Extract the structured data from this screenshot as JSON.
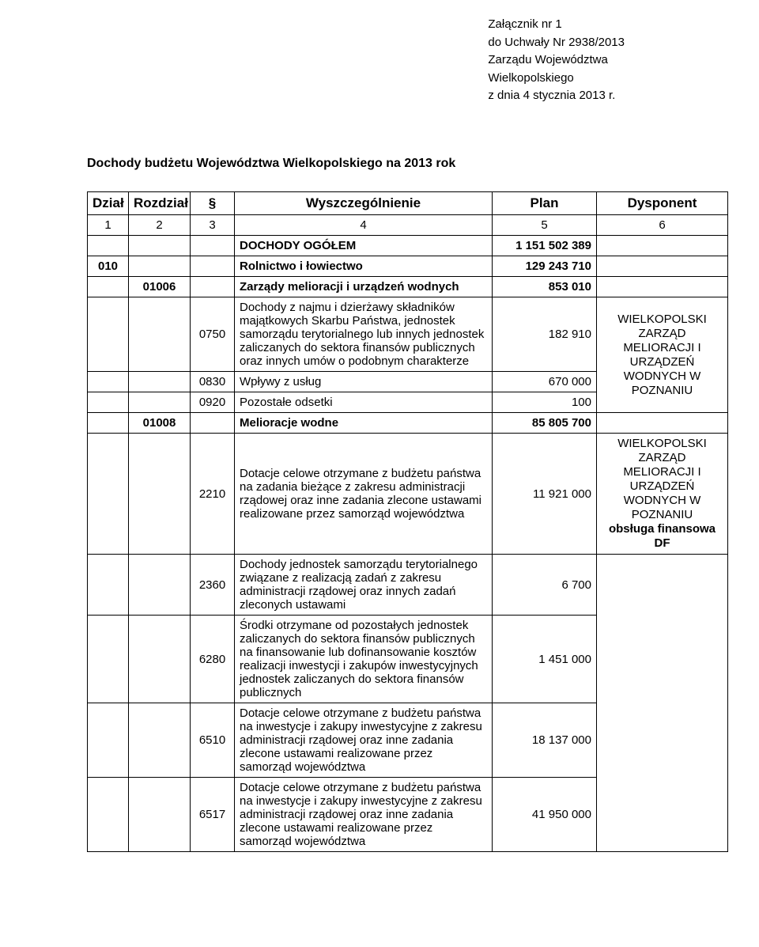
{
  "attachment": {
    "line1": "Załącznik nr 1",
    "line2": "do Uchwały Nr 2938/2013",
    "line3": "Zarządu Województwa",
    "line4": "Wielkopolskiego",
    "line5": "z dnia 4 stycznia 2013 r."
  },
  "title": "Dochody budżetu Województwa Wielkopolskiego na 2013 rok",
  "headers": {
    "dzial": "Dział",
    "rozdzial": "Rozdział",
    "paragraf": "§",
    "wyszcz": "Wyszczególnienie",
    "plan": "Plan",
    "dysponent": "Dysponent",
    "n1": "1",
    "n2": "2",
    "n3": "3",
    "n4": "4",
    "n5": "5",
    "n6": "6"
  },
  "rows": {
    "dochody_ogolem": {
      "label": "DOCHODY OGÓŁEM",
      "plan": "1 151 502 389"
    },
    "r010": {
      "dzial": "010",
      "label": "Rolnictwo i łowiectwo",
      "plan": "129 243 710"
    },
    "r01006": {
      "rozdz": "01006",
      "label": "Zarządy melioracji i urządzeń wodnych",
      "plan": "853 010"
    },
    "p0750": {
      "par": "0750",
      "label": "Dochody z najmu i dzierżawy składników majątkowych Skarbu Państwa, jednostek samorządu terytorialnego lub innych jednostek zaliczanych do sektora finansów publicznych oraz innych umów o podobnym charakterze",
      "plan": "182 910",
      "dysp": "WIELKOPOLSKI ZARZĄD MELIORACJI I URZĄDZEŃ WODNYCH W POZNANIU"
    },
    "p0830": {
      "par": "0830",
      "label": "Wpływy z usług",
      "plan": "670 000"
    },
    "p0920": {
      "par": "0920",
      "label": "Pozostałe odsetki",
      "plan": "100"
    },
    "r01008": {
      "rozdz": "01008",
      "label": "Melioracje wodne",
      "plan": "85 805 700"
    },
    "p2210": {
      "par": "2210",
      "label": "Dotacje celowe otrzymane z budżetu państwa na zadania bieżące z zakresu administracji rządowej oraz inne zadania zlecone ustawami realizowane przez samorząd województwa",
      "plan": "11 921 000",
      "dysp_l1": "WIELKOPOLSKI ZARZĄD MELIORACJI I URZĄDZEŃ WODNYCH W POZNANIU",
      "dysp_l2": "obsługa finansowa DF"
    },
    "p2360": {
      "par": "2360",
      "label": "Dochody jednostek samorządu terytorialnego związane z realizacją zadań z zakresu administracji rządowej oraz innych zadań zleconych ustawami",
      "plan": "6 700"
    },
    "p6280": {
      "par": "6280",
      "label": "Środki otrzymane od pozostałych jednostek zaliczanych do sektora finansów publicznych na finansowanie lub dofinansowanie kosztów realizacji inwestycji i zakupów inwestycyjnych jednostek zaliczanych do sektora finansów publicznych",
      "plan": "1 451 000"
    },
    "p6510": {
      "par": "6510",
      "label": "Dotacje celowe otrzymane z budżetu państwa na inwestycje i zakupy inwestycyjne z zakresu administracji rządowej oraz inne zadania zlecone ustawami realizowane przez samorząd województwa",
      "plan": "18 137 000"
    },
    "p6517": {
      "par": "6517",
      "label": "Dotacje celowe otrzymane z budżetu państwa na inwestycje i zakupy inwestycyjne z zakresu administracji rządowej oraz inne zadania zlecone ustawami realizowane przez samorząd województwa",
      "plan": "41 950 000"
    }
  },
  "styling": {
    "border_color": "#000000",
    "background_color": "#ffffff",
    "font_family": "Arial",
    "header_fontsize": 17,
    "body_fontsize": 15,
    "big_fontsize": 19,
    "dysp_fontsize": 12
  }
}
